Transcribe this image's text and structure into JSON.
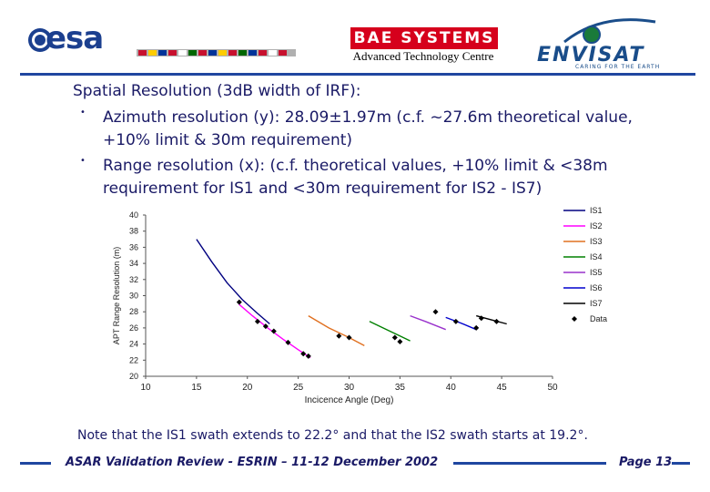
{
  "header": {
    "esa_logo_text": "esa",
    "bae_logo_text": "BAE SYSTEMS",
    "bae_subtitle": "Advanced Technology Centre",
    "envisat_logo_text": "ENVISAT",
    "envisat_tagline": "CARING FOR THE EARTH"
  },
  "content": {
    "heading": "Spatial Resolution (3dB width of IRF):",
    "bullets": [
      "Azimuth resolution (y): 28.09±1.97m (c.f. ~27.6m theoretical value, +10% limit & 30m requirement)",
      "Range resolution (x): (c.f. theoretical values, +10% limit & <38m requirement for IS1 and <30m requirement for IS2 - IS7)"
    ],
    "note": "Note that the IS1 swath extends to 22.2° and that the IS2 swath starts at 19.2°."
  },
  "footer": {
    "title": "ASAR Validation Review - ESRIN – 11-12 December 2002",
    "page_prefix": "Page",
    "page_number": "13"
  },
  "colors": {
    "accent_blue": "#1f46a0",
    "text_navy": "#1a1a66",
    "bae_red": "#d6001c"
  },
  "chart_data": {
    "type": "line",
    "xlabel": "Incicence Angle (Deg)",
    "ylabel": "APT Range Resolution (m)",
    "xlim": [
      10,
      50
    ],
    "ylim": [
      20,
      40
    ],
    "x_ticks": [
      10,
      15,
      20,
      25,
      30,
      35,
      40,
      45,
      50
    ],
    "y_ticks": [
      20,
      22,
      24,
      26,
      28,
      30,
      32,
      34,
      36,
      38,
      40
    ],
    "legend_position": "right",
    "series": [
      {
        "name": "IS1",
        "color": "#000080",
        "x": [
          15.0,
          16.5,
          18.0,
          19.5,
          21.0,
          22.2
        ],
        "y": [
          37.0,
          34.2,
          31.6,
          29.5,
          27.8,
          26.5
        ]
      },
      {
        "name": "IS2",
        "color": "#ff00ff",
        "x": [
          19.2,
          20.5,
          22.0,
          23.5,
          25.0,
          26.2
        ],
        "y": [
          28.9,
          27.5,
          26.0,
          24.6,
          23.3,
          22.3
        ]
      },
      {
        "name": "IS3",
        "color": "#e07020",
        "x": [
          26.0,
          28.0,
          30.0,
          31.5
        ],
        "y": [
          27.5,
          26.0,
          24.8,
          23.8
        ]
      },
      {
        "name": "IS4",
        "color": "#008000",
        "x": [
          32.0,
          33.5,
          35.0,
          36.0
        ],
        "y": [
          26.8,
          25.9,
          25.0,
          24.4
        ]
      },
      {
        "name": "IS5",
        "color": "#9932cc",
        "x": [
          36.0,
          37.5,
          39.5
        ],
        "y": [
          27.5,
          26.8,
          25.8
        ]
      },
      {
        "name": "IS6",
        "color": "#0000cd",
        "x": [
          39.5,
          41.0,
          42.5
        ],
        "y": [
          27.3,
          26.6,
          25.8
        ]
      },
      {
        "name": "IS7",
        "color": "#000000",
        "x": [
          42.5,
          44.0,
          45.5
        ],
        "y": [
          27.5,
          27.0,
          26.5
        ]
      }
    ],
    "data_points": {
      "name": "Data",
      "x": [
        19.2,
        21.0,
        21.8,
        22.6,
        24.0,
        25.5,
        26.0,
        29.0,
        30.0,
        34.5,
        35.0,
        38.5,
        40.5,
        42.5,
        43.0,
        44.5
      ],
      "y": [
        29.2,
        26.8,
        26.2,
        25.6,
        24.2,
        22.8,
        22.5,
        25.0,
        24.8,
        24.8,
        24.3,
        28.0,
        26.8,
        26.0,
        27.2,
        26.8
      ]
    }
  }
}
